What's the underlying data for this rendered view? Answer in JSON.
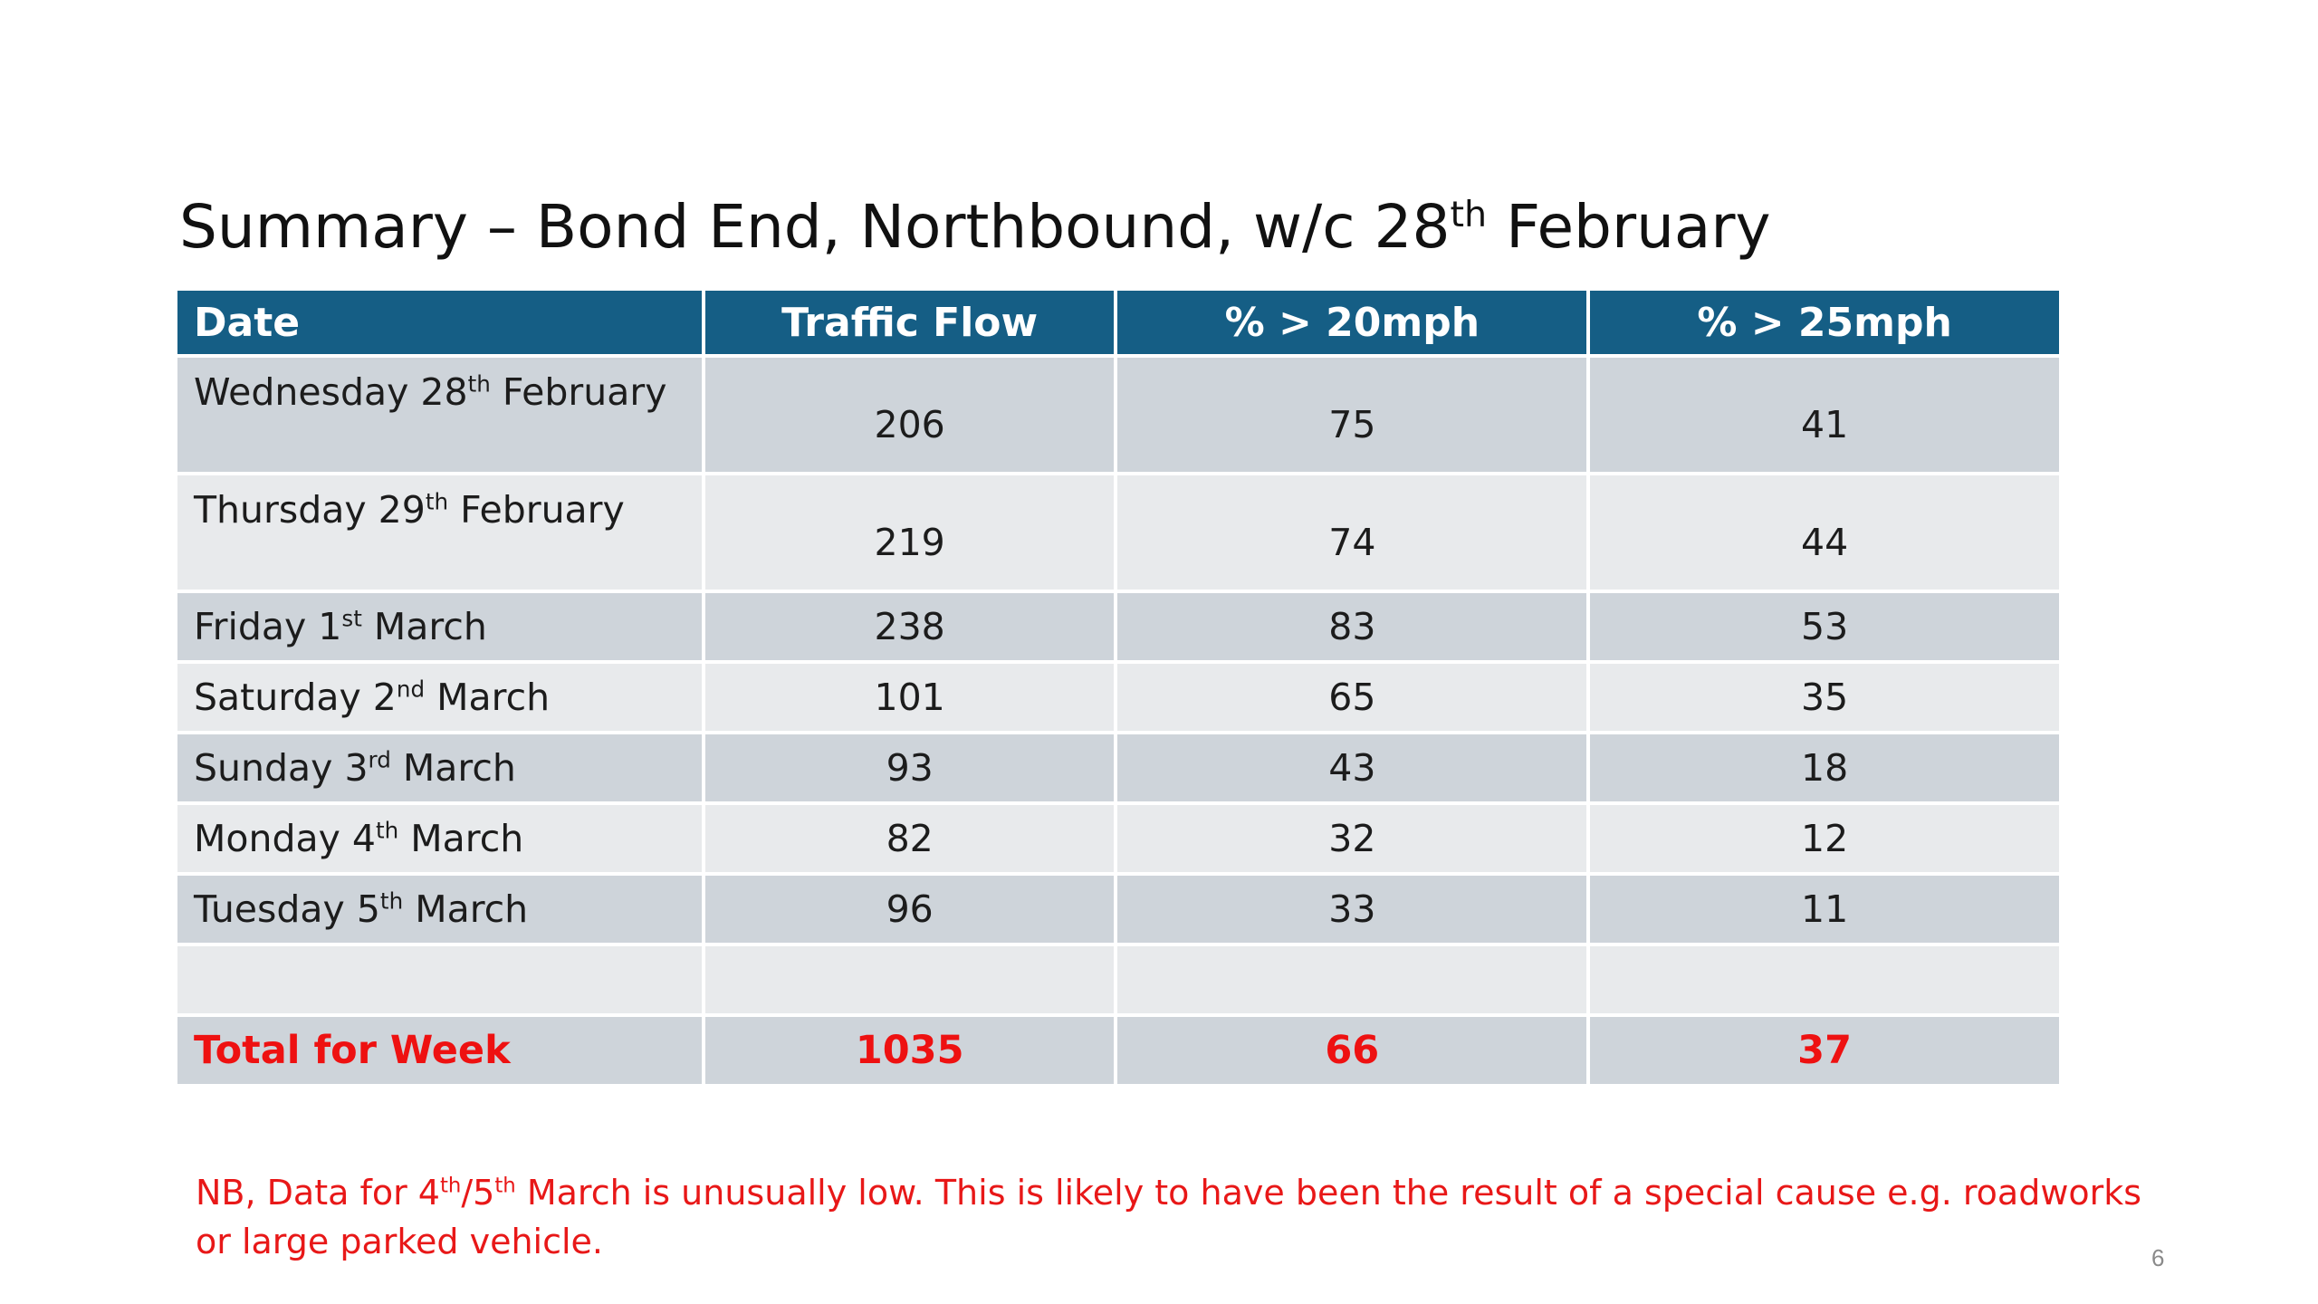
{
  "slide": {
    "title_prefix": "Summary – Bond End, Northbound, w/c 28",
    "title_sup": "th",
    "title_suffix": " February",
    "page_number": "6"
  },
  "table": {
    "headers": {
      "date": "Date",
      "flow": "Traffic Flow",
      "pct20": "% > 20mph",
      "pct25": "% > 25mph"
    },
    "rows": [
      {
        "day": "Wednesday 28",
        "sup": "th",
        "month": " February",
        "flow": "206",
        "pct20": "75",
        "pct25": "41"
      },
      {
        "day": "Thursday 29",
        "sup": "th",
        "month": " February",
        "flow": "219",
        "pct20": "74",
        "pct25": "44"
      },
      {
        "day": "Friday 1",
        "sup": "st",
        "month": " March",
        "flow": "238",
        "pct20": "83",
        "pct25": "53"
      },
      {
        "day": "Saturday 2",
        "sup": "nd",
        "month": " March",
        "flow": "101",
        "pct20": "65",
        "pct25": "35"
      },
      {
        "day": "Sunday 3",
        "sup": "rd",
        "month": " March",
        "flow": "93",
        "pct20": "43",
        "pct25": "18"
      },
      {
        "day": "Monday 4",
        "sup": "th",
        "month": " March",
        "flow": "82",
        "pct20": "32",
        "pct25": "12"
      },
      {
        "day": "Tuesday 5",
        "sup": "th",
        "month": " March",
        "flow": "96",
        "pct20": "33",
        "pct25": "11"
      }
    ],
    "total": {
      "label": "Total for Week",
      "flow": "1035",
      "pct20": "66",
      "pct25": "37"
    }
  },
  "note": {
    "part1": "NB, Data for 4",
    "sup1": "th",
    "part2": "/5",
    "sup2": "th",
    "part3": " March is unusually low.  This is likely to have been the result of a special cause e.g. roadworks or large parked vehicle."
  },
  "colors": {
    "header_bg": "#155e85",
    "row_dark": "#ced4da",
    "row_light": "#e8eaec",
    "highlight_red": "#ee1111"
  }
}
